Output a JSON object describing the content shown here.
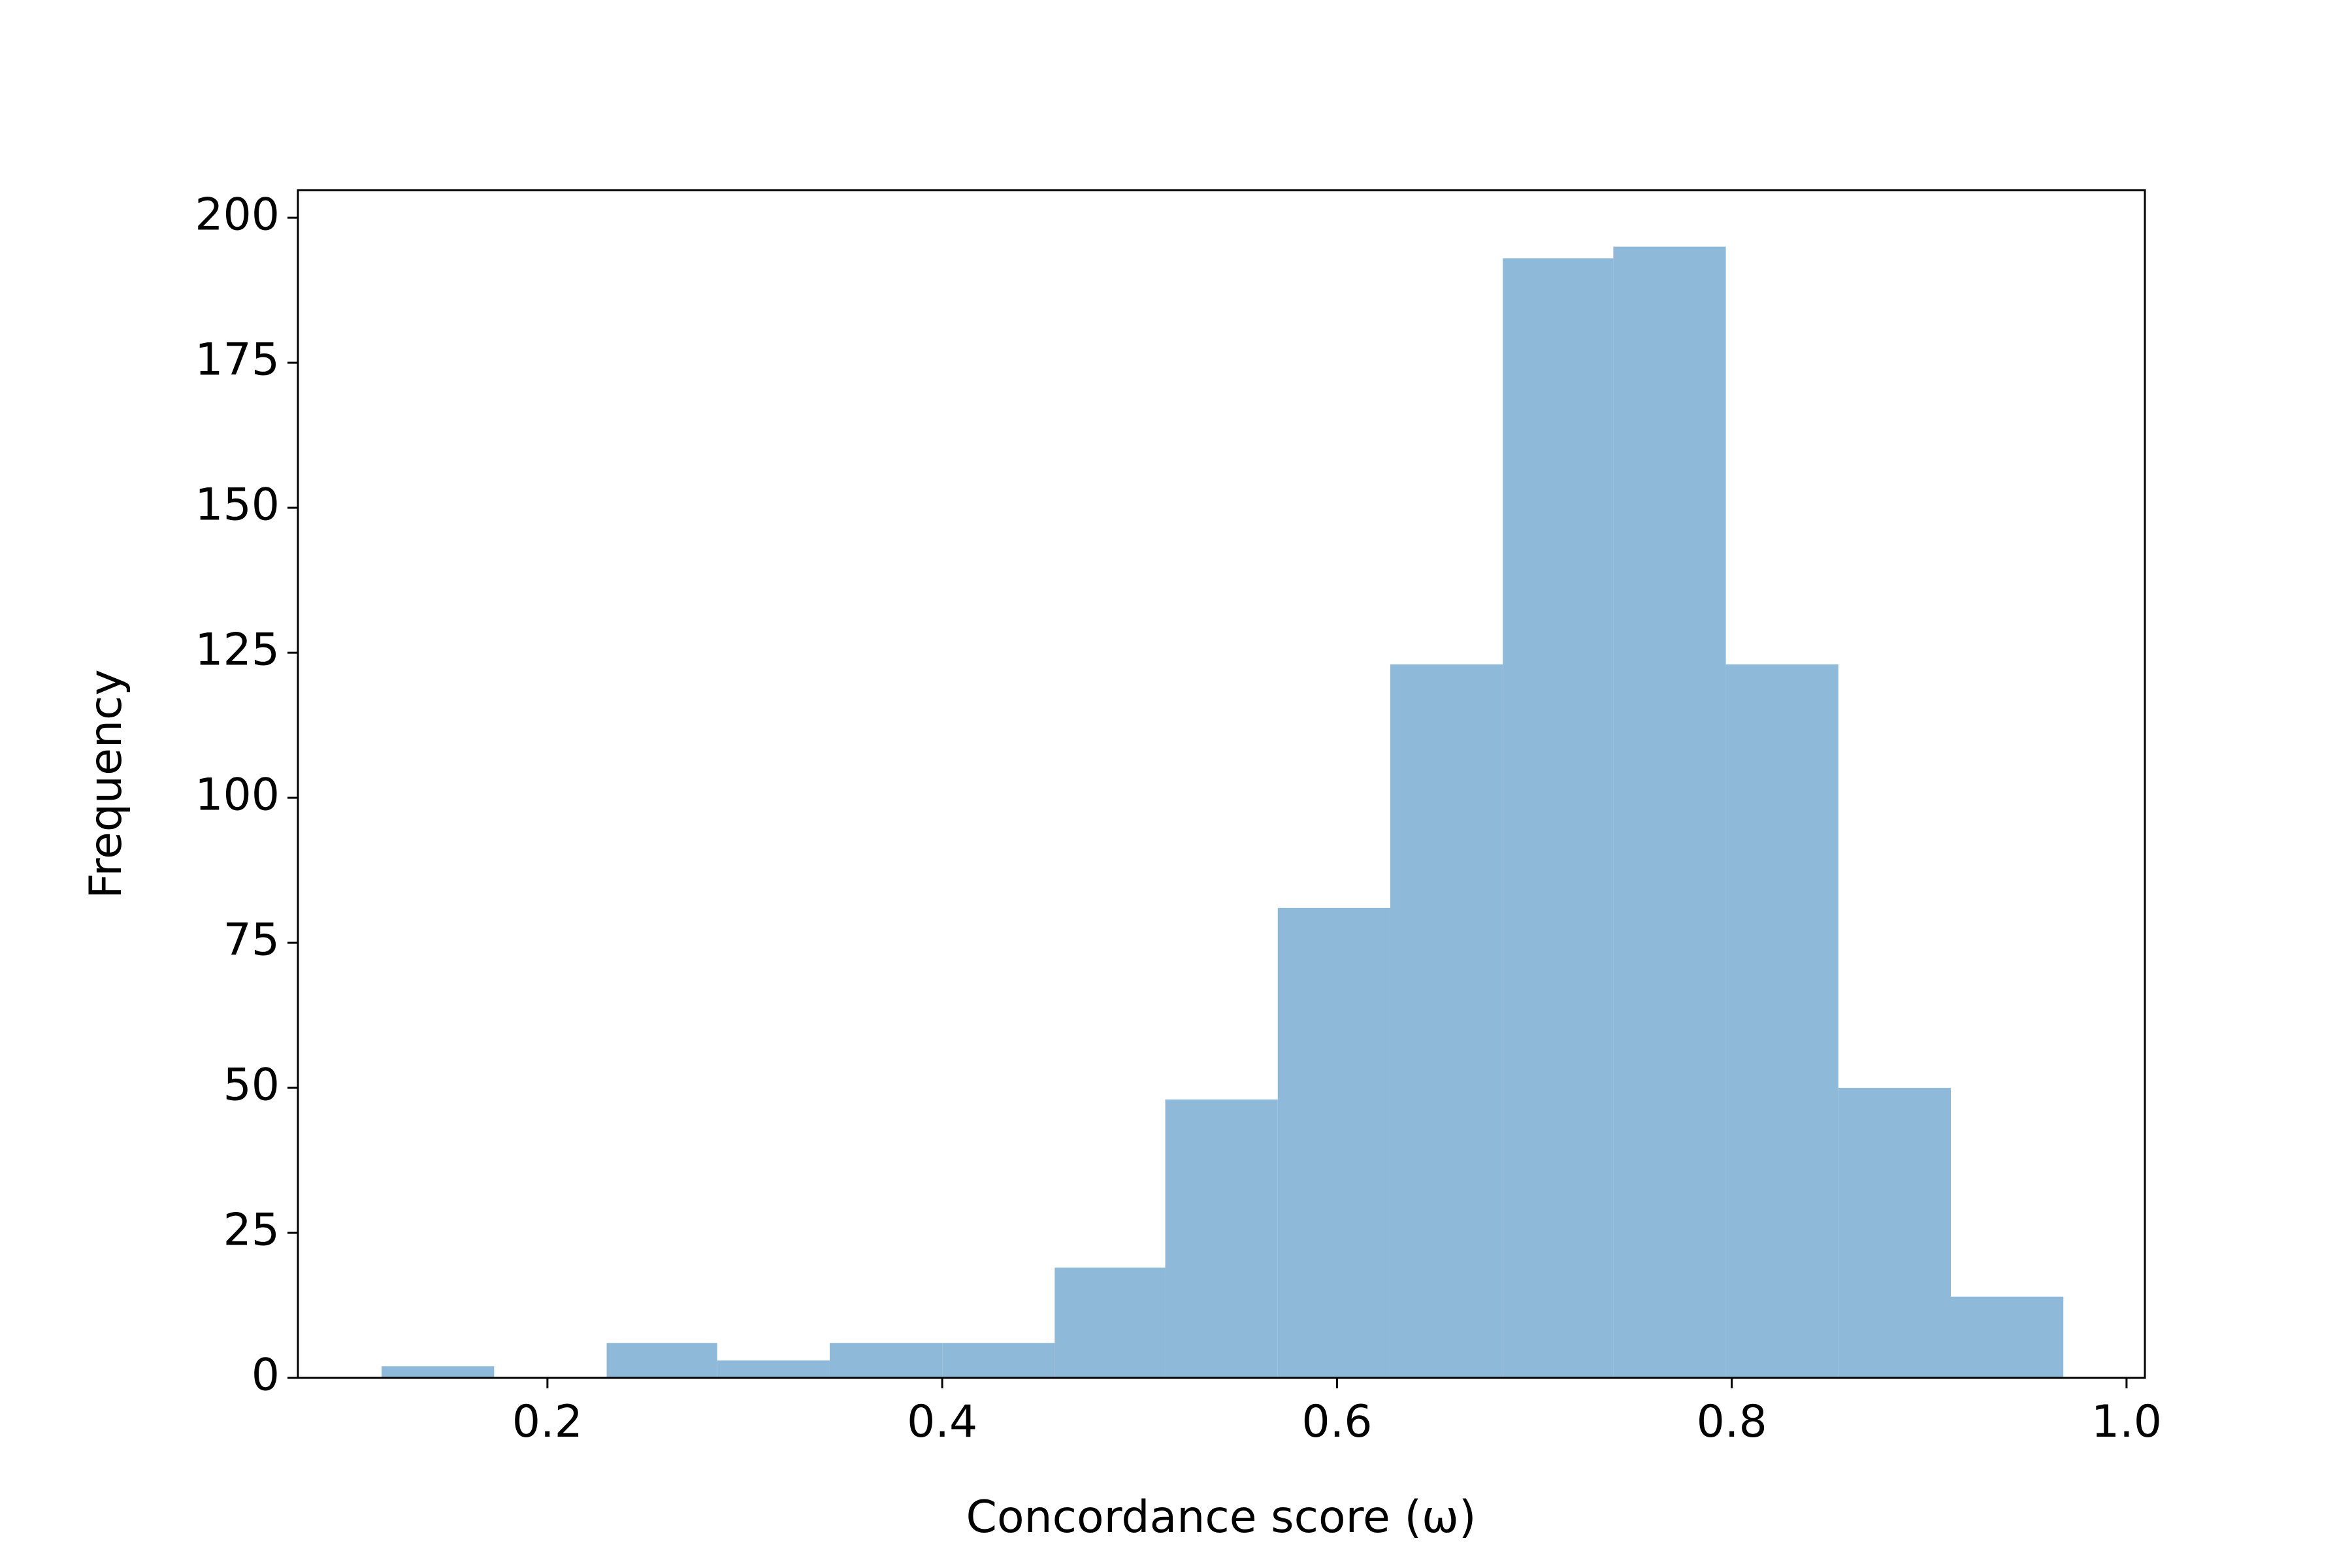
{
  "chart_data": {
    "type": "histogram",
    "xlabel": "Concordance score (ω)",
    "ylabel": "Frequency",
    "bins": [
      0.116,
      0.173,
      0.23,
      0.286,
      0.343,
      0.4,
      0.457,
      0.513,
      0.57,
      0.627,
      0.684,
      0.74,
      0.797,
      0.854,
      0.911,
      0.968
    ],
    "values": [
      2,
      0,
      6,
      3,
      6,
      6,
      19,
      48,
      81,
      123,
      193,
      195,
      123,
      50,
      14
    ],
    "color": "#8fb9d9",
    "xlim": [
      0.0736,
      1.0093
    ],
    "xticks": [
      0.2,
      0.4,
      0.6,
      0.8,
      {
        "value": 1,
        "label": "1.0"
      }
    ],
    "ylim": [
      0,
      204.75
    ],
    "yticks": [
      0,
      25,
      50,
      75,
      100,
      125,
      150,
      175,
      200
    ],
    "grid": false
  }
}
